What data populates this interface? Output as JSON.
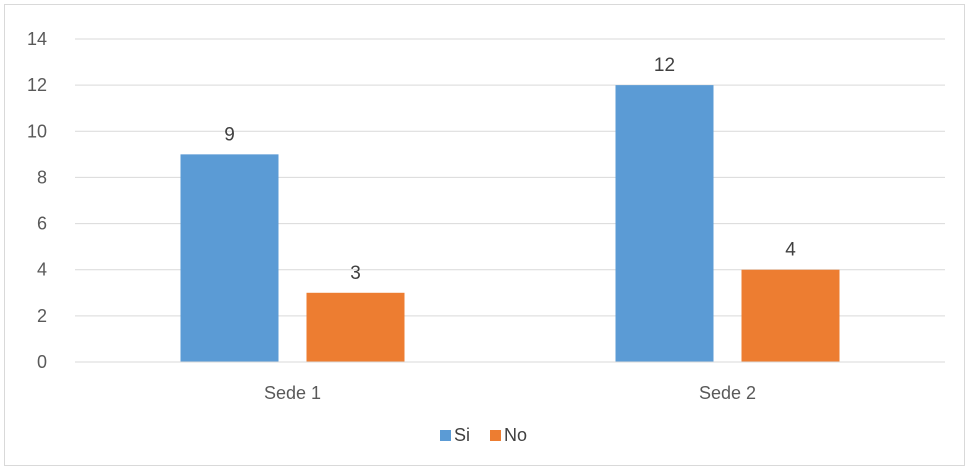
{
  "chart_data": {
    "type": "bar",
    "categories": [
      "Sede 1",
      "Sede 2"
    ],
    "series": [
      {
        "name": "Si",
        "values": [
          9,
          12
        ],
        "color": "#5b9bd5"
      },
      {
        "name": "No",
        "values": [
          3,
          4
        ],
        "color": "#ed7d31"
      }
    ],
    "ylim": [
      0,
      14
    ],
    "yticks": [
      "0",
      "2",
      "4",
      "6",
      "8",
      "10",
      "12",
      "14"
    ],
    "grid": true,
    "legend_position": "bottom",
    "data_labels": true
  }
}
